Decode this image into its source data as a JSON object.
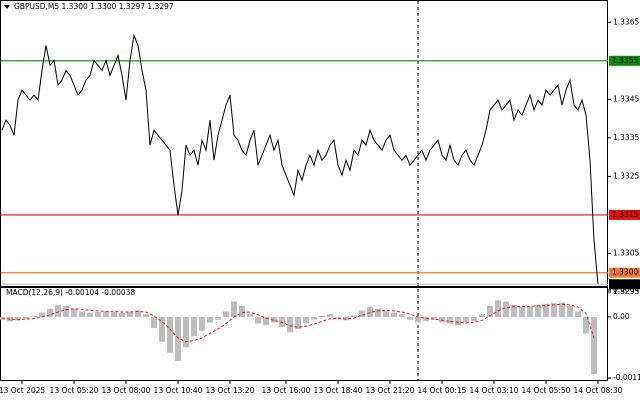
{
  "chart_data": [
    {
      "type": "line",
      "title": "GBPUSD,M5  1.3300 1.3300 1.3297 1.3297",
      "color": "#000000",
      "values": [
        1.3337,
        1.33396,
        1.33383,
        1.33357,
        1.33448,
        1.33474,
        1.33461,
        1.33448,
        1.33461,
        1.33448,
        1.33525,
        1.3359,
        1.33538,
        1.33551,
        1.33487,
        1.335,
        1.33525,
        1.33512,
        1.33487,
        1.33461,
        1.33474,
        1.335,
        1.33512,
        1.33551,
        1.33538,
        1.33525,
        1.33551,
        1.33512,
        1.33538,
        1.33564,
        1.33512,
        1.33448,
        1.33551,
        1.33616,
        1.3359,
        1.33525,
        1.33474,
        1.33331,
        1.3337,
        1.33357,
        1.33344,
        1.33331,
        1.33318,
        1.33227,
        1.33149,
        1.33214,
        1.33331,
        1.33305,
        1.33318,
        1.33279,
        1.33344,
        1.33318,
        1.33396,
        1.33292,
        1.33357,
        1.33396,
        1.33435,
        1.33461,
        1.33357,
        1.33344,
        1.33318,
        1.33305,
        1.33344,
        1.3337,
        1.33279,
        1.33305,
        1.33331,
        1.33357,
        1.33318,
        1.33344,
        1.33279,
        1.33253,
        1.33227,
        1.33201,
        1.33266,
        1.3324,
        1.33279,
        1.33305,
        1.33279,
        1.33318,
        1.33292,
        1.33305,
        1.33331,
        1.33344,
        1.33279,
        1.33253,
        1.33292,
        1.33266,
        1.33318,
        1.33305,
        1.33344,
        1.33331,
        1.3337,
        1.33344,
        1.33331,
        1.33318,
        1.33344,
        1.33357,
        1.33318,
        1.33305,
        1.33292,
        1.33305,
        1.33279,
        1.33292,
        1.33305,
        1.33318,
        1.33292,
        1.33318,
        1.33331,
        1.33344,
        1.33305,
        1.33292,
        1.33331,
        1.33292,
        1.33279,
        1.33305,
        1.33318,
        1.33292,
        1.33279,
        1.33305,
        1.33331,
        1.3337,
        1.33422,
        1.33435,
        1.33448,
        1.33422,
        1.33435,
        1.33448,
        1.33396,
        1.33422,
        1.33409,
        1.33435,
        1.33461,
        1.33422,
        1.33448,
        1.33435,
        1.33474,
        1.33461,
        1.33474,
        1.33487,
        1.33435,
        1.33474,
        1.335,
        1.33435,
        1.33422,
        1.33448,
        1.33409,
        1.33292,
        1.33084,
        1.3297
      ],
      "xlim": [
        0,
        149
      ],
      "xticks": [
        {
          "value": 5,
          "label": "13 Oct 2025"
        },
        {
          "value": 18,
          "label": "13 Oct 05:20"
        },
        {
          "value": 31,
          "label": "13 Oct 08:00"
        },
        {
          "value": 44,
          "label": "13 Oct 10:40"
        },
        {
          "value": 57,
          "label": "13 Oct 13:20"
        },
        {
          "value": 71,
          "label": "13 Oct 16:00"
        },
        {
          "value": 84,
          "label": "13 Oct 18:40"
        },
        {
          "value": 97,
          "label": "13 Oct 21:20"
        },
        {
          "value": 110,
          "label": "14 Oct 00:15"
        },
        {
          "value": 123,
          "label": "14 Oct 03:10"
        },
        {
          "value": 136,
          "label": "14 Oct 05:50"
        },
        {
          "value": 149,
          "label": "14 Oct 08:30"
        }
      ],
      "ylim": [
        1.3295,
        1.337
      ],
      "yticks": [
        1.3365,
        1.3345,
        1.3335,
        1.3325,
        1.3305,
        1.3295
      ],
      "levels": [
        {
          "value": 1.3355,
          "color": "#0a8a0a"
        },
        {
          "value": 1.3315,
          "color": "#e01010"
        },
        {
          "value": 1.33,
          "label": "1.3300",
          "color": "#f07a30"
        }
      ]
    },
    {
      "type": "macd",
      "title": "MACD(12,26,9) -0.00104 -0.00038",
      "color": "#bdbdbd",
      "signal_color": "#e02020",
      "values": [
        -5e-05,
        -8e-05,
        -6e-05,
        -3e-05,
        2e-05,
        8e-05,
        0.00015,
        0.00022,
        0.0002,
        0.00014,
        0.0001,
        8e-05,
        9e-05,
        0.0001,
        9e-05,
        8e-05,
        0.0001,
        0.00012,
        5e-05,
        -0.0002,
        -0.00045,
        -0.00065,
        -0.0008,
        -0.00055,
        -0.00035,
        -0.00025,
        -0.0001,
        -5e-05,
        0.0001,
        0.00028,
        0.0002,
        5e-05,
        -0.00012,
        -0.00015,
        -0.0001,
        -0.00018,
        -0.00028,
        -0.00022,
        -0.00012,
        -5e-05,
        2e-05,
        5e-05,
        -3e-05,
        -6e-05,
        3e-05,
        0.00012,
        0.00018,
        0.00015,
        0.00012,
        8e-05,
        5e-05,
        -5e-05,
        -0.0001,
        -8e-05,
        -5e-05,
        -0.0001,
        -0.00012,
        -0.00015,
        -0.0001,
        -8e-05,
        5e-05,
        0.0002,
        0.0003,
        0.00028,
        0.00022,
        0.00018,
        0.0002,
        0.00022,
        0.00024,
        0.00025,
        0.00026,
        0.0002,
        0.0001,
        -0.0003,
        -0.00104
      ],
      "signal": [
        -3e-05,
        -4e-05,
        -5e-05,
        -4e-05,
        -3e-05,
        0,
        4e-05,
        9e-05,
        0.00013,
        0.00015,
        0.00014,
        0.00012,
        0.00011,
        0.0001,
        0.0001,
        9e-05,
        9e-05,
        0.0001,
        9e-05,
        2e-05,
        -8e-05,
        -0.00022,
        -0.00038,
        -0.00045,
        -0.00043,
        -0.00038,
        -0.0003,
        -0.00022,
        -0.00012,
        0,
        8e-05,
        9e-05,
        4e-05,
        -2e-05,
        -6e-05,
        -0.0001,
        -0.00016,
        -0.00019,
        -0.00017,
        -0.00013,
        -8e-05,
        -3e-05,
        -3e-05,
        -4e-05,
        -2e-05,
        3e-05,
        8e-05,
        0.00011,
        0.00012,
        0.00011,
        9e-05,
        5e-05,
        0,
        -3e-05,
        -4e-05,
        -6e-05,
        -8e-05,
        -0.0001,
        -0.00011,
        -0.0001,
        -6e-05,
        2e-05,
        0.00011,
        0.00017,
        0.00019,
        0.00019,
        0.00019,
        0.0002,
        0.00021,
        0.00022,
        0.00023,
        0.00022,
        0.00018,
        6e-05,
        -0.00038
      ],
      "xlim": [
        0,
        74
      ],
      "ylim": [
        -0.00111,
        0.00049
      ],
      "yticks": [
        0.00049,
        {
          "value": 0,
          "label": "0.00"
        },
        -0.00111
      ]
    }
  ]
}
